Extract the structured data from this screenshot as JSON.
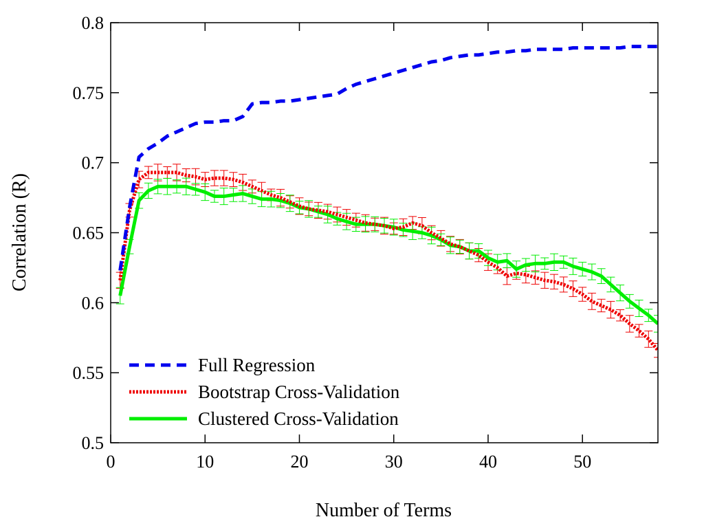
{
  "chart_data": {
    "type": "line",
    "title": "",
    "xlabel": "Number of Terms",
    "ylabel": "Correlation (R)",
    "xlim": [
      0,
      58
    ],
    "ylim": [
      0.5,
      0.8
    ],
    "xticks": [
      0,
      10,
      20,
      30,
      40,
      50
    ],
    "yticks": [
      0.5,
      0.55,
      0.6,
      0.65,
      0.7,
      0.75,
      0.8
    ],
    "xtick_labels": [
      "0",
      "10",
      "20",
      "30",
      "40",
      "50"
    ],
    "ytick_labels": [
      "0.5",
      "0.55",
      "0.6",
      "0.65",
      "0.7",
      "0.75",
      "0.8"
    ],
    "grid": false,
    "legend_position": "bottom-left",
    "series": [
      {
        "name": "Full Regression",
        "color": "#0000ee",
        "style": "dashed",
        "x": [
          1,
          2,
          3,
          4,
          5,
          6,
          7,
          8,
          9,
          10,
          11,
          12,
          13,
          14,
          15,
          16,
          17,
          18,
          19,
          20,
          21,
          22,
          23,
          24,
          25,
          26,
          27,
          28,
          29,
          30,
          31,
          32,
          33,
          34,
          35,
          36,
          37,
          38,
          39,
          40,
          41,
          42,
          43,
          44,
          45,
          46,
          47,
          48,
          49,
          50,
          51,
          52,
          53,
          54,
          55,
          56,
          57,
          58
        ],
        "y": [
          0.623,
          0.668,
          0.704,
          0.71,
          0.714,
          0.719,
          0.722,
          0.725,
          0.728,
          0.729,
          0.729,
          0.73,
          0.73,
          0.733,
          0.742,
          0.743,
          0.743,
          0.744,
          0.744,
          0.745,
          0.746,
          0.747,
          0.748,
          0.749,
          0.753,
          0.756,
          0.758,
          0.76,
          0.762,
          0.764,
          0.766,
          0.768,
          0.77,
          0.772,
          0.773,
          0.775,
          0.776,
          0.777,
          0.777,
          0.778,
          0.779,
          0.779,
          0.78,
          0.78,
          0.781,
          0.781,
          0.781,
          0.781,
          0.782,
          0.782,
          0.782,
          0.782,
          0.782,
          0.782,
          0.783,
          0.783,
          0.783,
          0.783
        ]
      },
      {
        "name": "Bootstrap Cross-Validation",
        "color": "#ee0000",
        "style": "dotted",
        "x": [
          1,
          2,
          3,
          4,
          5,
          6,
          7,
          8,
          9,
          10,
          11,
          12,
          13,
          14,
          15,
          16,
          17,
          18,
          19,
          20,
          21,
          22,
          23,
          24,
          25,
          26,
          27,
          28,
          29,
          30,
          31,
          32,
          33,
          34,
          35,
          36,
          37,
          38,
          39,
          40,
          41,
          42,
          43,
          44,
          45,
          46,
          47,
          48,
          49,
          50,
          51,
          52,
          53,
          54,
          55,
          56,
          57,
          58
        ],
        "y": [
          0.616,
          0.666,
          0.688,
          0.693,
          0.693,
          0.693,
          0.693,
          0.691,
          0.69,
          0.688,
          0.689,
          0.689,
          0.688,
          0.686,
          0.683,
          0.68,
          0.677,
          0.675,
          0.672,
          0.669,
          0.667,
          0.666,
          0.665,
          0.663,
          0.661,
          0.659,
          0.657,
          0.656,
          0.655,
          0.653,
          0.654,
          0.657,
          0.655,
          0.65,
          0.646,
          0.642,
          0.64,
          0.637,
          0.634,
          0.629,
          0.625,
          0.619,
          0.621,
          0.62,
          0.618,
          0.616,
          0.615,
          0.613,
          0.61,
          0.606,
          0.601,
          0.598,
          0.595,
          0.591,
          0.585,
          0.58,
          0.574,
          0.566
        ]
      },
      {
        "name": "Clustered Cross-Validation",
        "color": "#00ee00",
        "style": "solid",
        "x": [
          1,
          2,
          3,
          4,
          5,
          6,
          7,
          8,
          9,
          10,
          11,
          12,
          13,
          14,
          15,
          16,
          17,
          18,
          19,
          20,
          21,
          22,
          23,
          24,
          25,
          26,
          27,
          28,
          29,
          30,
          31,
          32,
          33,
          34,
          35,
          36,
          37,
          38,
          39,
          40,
          41,
          42,
          43,
          44,
          45,
          46,
          47,
          48,
          49,
          50,
          51,
          52,
          53,
          54,
          55,
          56,
          57,
          58
        ],
        "y": [
          0.605,
          0.64,
          0.673,
          0.68,
          0.683,
          0.683,
          0.683,
          0.683,
          0.681,
          0.679,
          0.676,
          0.676,
          0.677,
          0.678,
          0.676,
          0.674,
          0.674,
          0.673,
          0.671,
          0.668,
          0.667,
          0.665,
          0.663,
          0.66,
          0.658,
          0.656,
          0.656,
          0.656,
          0.655,
          0.654,
          0.652,
          0.651,
          0.65,
          0.648,
          0.645,
          0.641,
          0.64,
          0.637,
          0.637,
          0.632,
          0.629,
          0.63,
          0.624,
          0.627,
          0.628,
          0.628,
          0.629,
          0.629,
          0.626,
          0.624,
          0.622,
          0.619,
          0.613,
          0.607,
          0.601,
          0.596,
          0.591,
          0.585
        ]
      }
    ]
  }
}
